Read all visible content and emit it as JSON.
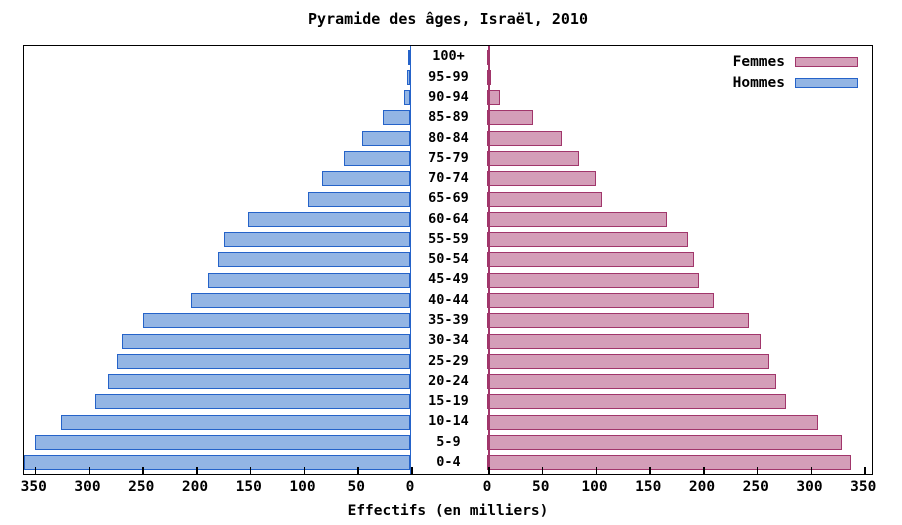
{
  "title": "Pyramide des âges, Israël, 2010",
  "xlabel": "Effectifs (en milliers)",
  "legend": {
    "femmes": "Femmes",
    "hommes": "Hommes"
  },
  "colors": {
    "male_fill": "#93B5E4",
    "male_border": "#2563C9",
    "female_fill": "#D49EB8",
    "female_border": "#A1366B"
  },
  "axis": {
    "left_ticks": [
      350,
      300,
      250,
      200,
      150,
      100,
      50,
      0
    ],
    "right_ticks": [
      0,
      50,
      100,
      150,
      200,
      250,
      300,
      350
    ]
  },
  "chart_data": {
    "type": "bar",
    "title": "Pyramide des âges, Israël, 2010",
    "xlabel": "Effectifs (en milliers)",
    "orientation": "population-pyramid",
    "xlim": [
      0,
      360
    ],
    "categories": [
      "100+",
      "95-99",
      "90-94",
      "85-89",
      "80-84",
      "75-79",
      "70-74",
      "65-69",
      "60-64",
      "55-59",
      "50-54",
      "45-49",
      "40-44",
      "35-39",
      "30-34",
      "25-29",
      "20-24",
      "15-19",
      "10-14",
      "5-9",
      "0-4"
    ],
    "series": [
      {
        "name": "Hommes",
        "side": "left",
        "values": [
          1,
          4,
          7,
          26,
          46,
          62,
          83,
          96,
          152,
          174,
          180,
          189,
          205,
          249,
          269,
          274,
          282,
          294,
          326,
          350,
          360
        ]
      },
      {
        "name": "Femmes",
        "side": "right",
        "values": [
          2,
          5,
          13,
          44,
          71,
          87,
          102,
          108,
          168,
          188,
          194,
          198,
          212,
          245,
          256,
          263,
          270,
          279,
          309,
          331,
          340
        ]
      }
    ],
    "legend_position": "top-right",
    "grid": false
  }
}
